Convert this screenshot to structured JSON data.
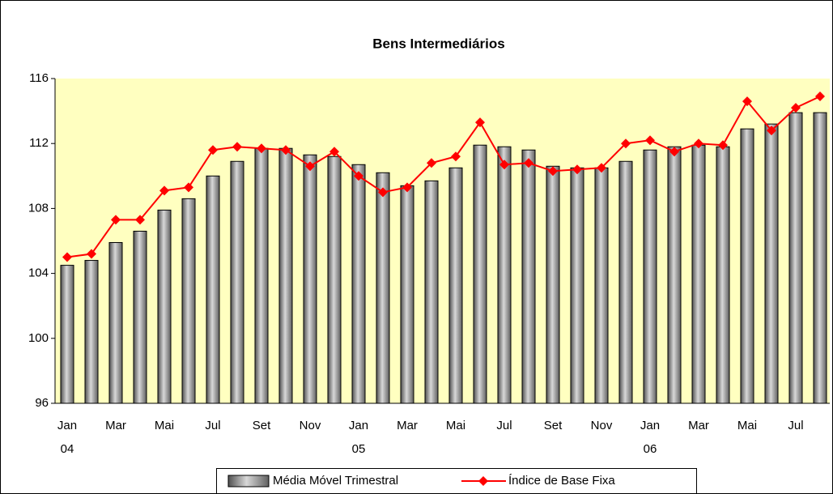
{
  "chart_data": {
    "type": "bar_line",
    "title": "Bens Intermediários",
    "categories": [
      "Jan",
      null,
      "Mar",
      null,
      "Mai",
      null,
      "Jul",
      null,
      "Set",
      null,
      "Nov",
      null,
      "Jan",
      null,
      "Mar",
      null,
      "Mai",
      null,
      "Jul",
      null,
      "Set",
      null,
      "Nov",
      null,
      "Jan",
      null,
      "Mar",
      null,
      "Mai",
      null,
      "Jul",
      null
    ],
    "categories_level2": [
      "04",
      null,
      null,
      null,
      null,
      null,
      null,
      null,
      null,
      null,
      null,
      null,
      "05",
      null,
      null,
      null,
      null,
      null,
      null,
      null,
      null,
      null,
      null,
      null,
      "06",
      null,
      null,
      null,
      null,
      null,
      null,
      null
    ],
    "series": [
      {
        "name": "Média Móvel Trimestral",
        "type": "bar",
        "color": "#a0a0a0",
        "values": [
          104.5,
          104.8,
          105.9,
          106.6,
          107.9,
          108.6,
          110.0,
          110.9,
          111.7,
          111.7,
          111.3,
          111.2,
          110.7,
          110.2,
          109.4,
          109.7,
          110.5,
          111.9,
          111.8,
          111.6,
          110.6,
          110.5,
          110.5,
          110.9,
          111.6,
          111.8,
          111.9,
          111.8,
          112.9,
          113.2,
          113.9,
          113.9
        ]
      },
      {
        "name": "Índice de Base Fixa",
        "type": "line",
        "color": "#ff0000",
        "values": [
          105.0,
          105.2,
          107.3,
          107.3,
          109.1,
          109.3,
          111.6,
          111.8,
          111.7,
          111.6,
          110.6,
          111.5,
          110.0,
          109.0,
          109.3,
          110.8,
          111.2,
          113.3,
          110.7,
          110.8,
          110.3,
          110.4,
          110.5,
          112.0,
          112.2,
          111.5,
          112.0,
          111.9,
          114.6,
          112.8,
          114.2,
          114.9
        ]
      }
    ],
    "ylim": [
      96,
      116
    ],
    "yticks": [
      96,
      100,
      104,
      108,
      112,
      116
    ],
    "plot_background": "#ffffc0",
    "legend": "bottom"
  }
}
